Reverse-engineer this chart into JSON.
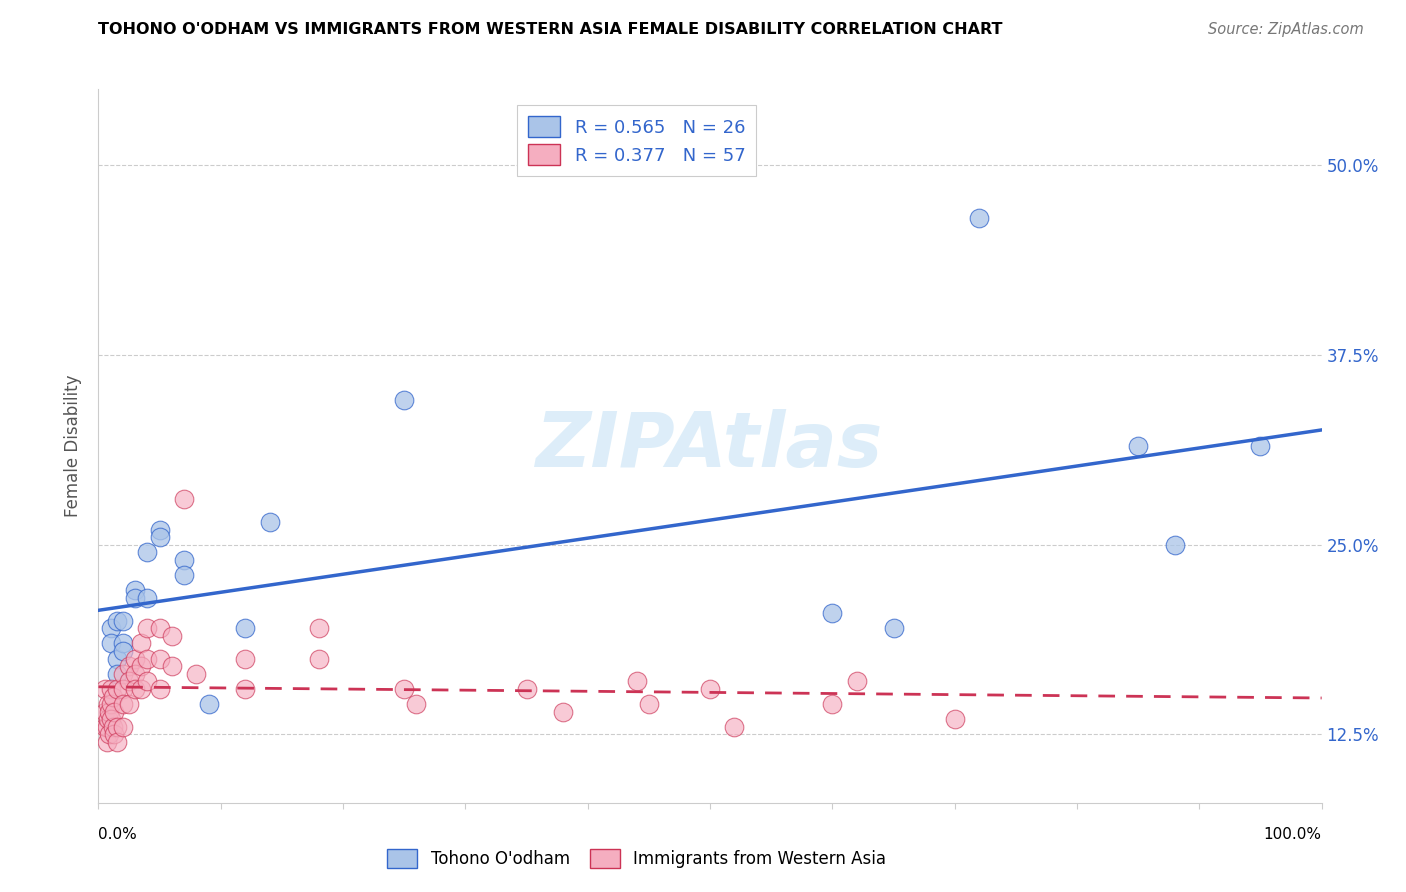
{
  "title": "TOHONO O'ODHAM VS IMMIGRANTS FROM WESTERN ASIA FEMALE DISABILITY CORRELATION CHART",
  "source": "Source: ZipAtlas.com",
  "ylabel": "Female Disability",
  "y_ticks": [
    0.125,
    0.25,
    0.375,
    0.5
  ],
  "y_tick_labels": [
    "12.5%",
    "25.0%",
    "37.5%",
    "50.0%"
  ],
  "blue_R": "0.565",
  "blue_N": "26",
  "pink_R": "0.377",
  "pink_N": "57",
  "blue_color": "#aac4e8",
  "pink_color": "#f5aec0",
  "blue_line_color": "#3366cc",
  "pink_line_color": "#cc3355",
  "blue_scatter": [
    [
      0.01,
      0.195
    ],
    [
      0.01,
      0.185
    ],
    [
      0.015,
      0.2
    ],
    [
      0.015,
      0.175
    ],
    [
      0.015,
      0.165
    ],
    [
      0.02,
      0.185
    ],
    [
      0.02,
      0.18
    ],
    [
      0.02,
      0.2
    ],
    [
      0.03,
      0.22
    ],
    [
      0.03,
      0.215
    ],
    [
      0.04,
      0.215
    ],
    [
      0.04,
      0.245
    ],
    [
      0.05,
      0.26
    ],
    [
      0.05,
      0.255
    ],
    [
      0.07,
      0.24
    ],
    [
      0.07,
      0.23
    ],
    [
      0.09,
      0.145
    ],
    [
      0.12,
      0.195
    ],
    [
      0.14,
      0.265
    ],
    [
      0.25,
      0.345
    ],
    [
      0.6,
      0.205
    ],
    [
      0.65,
      0.195
    ],
    [
      0.72,
      0.465
    ],
    [
      0.85,
      0.315
    ],
    [
      0.88,
      0.25
    ],
    [
      0.95,
      0.315
    ]
  ],
  "pink_scatter": [
    [
      0.005,
      0.13
    ],
    [
      0.005,
      0.14
    ],
    [
      0.005,
      0.155
    ],
    [
      0.007,
      0.12
    ],
    [
      0.007,
      0.13
    ],
    [
      0.008,
      0.145
    ],
    [
      0.008,
      0.135
    ],
    [
      0.009,
      0.125
    ],
    [
      0.009,
      0.14
    ],
    [
      0.01,
      0.155
    ],
    [
      0.01,
      0.145
    ],
    [
      0.01,
      0.135
    ],
    [
      0.012,
      0.15
    ],
    [
      0.012,
      0.13
    ],
    [
      0.013,
      0.14
    ],
    [
      0.013,
      0.125
    ],
    [
      0.015,
      0.155
    ],
    [
      0.015,
      0.13
    ],
    [
      0.015,
      0.12
    ],
    [
      0.02,
      0.165
    ],
    [
      0.02,
      0.155
    ],
    [
      0.02,
      0.145
    ],
    [
      0.02,
      0.13
    ],
    [
      0.025,
      0.17
    ],
    [
      0.025,
      0.16
    ],
    [
      0.025,
      0.145
    ],
    [
      0.03,
      0.175
    ],
    [
      0.03,
      0.165
    ],
    [
      0.03,
      0.155
    ],
    [
      0.035,
      0.185
    ],
    [
      0.035,
      0.17
    ],
    [
      0.035,
      0.155
    ],
    [
      0.04,
      0.195
    ],
    [
      0.04,
      0.175
    ],
    [
      0.04,
      0.16
    ],
    [
      0.05,
      0.195
    ],
    [
      0.05,
      0.175
    ],
    [
      0.05,
      0.155
    ],
    [
      0.06,
      0.19
    ],
    [
      0.06,
      0.17
    ],
    [
      0.07,
      0.28
    ],
    [
      0.08,
      0.165
    ],
    [
      0.12,
      0.155
    ],
    [
      0.12,
      0.175
    ],
    [
      0.18,
      0.195
    ],
    [
      0.18,
      0.175
    ],
    [
      0.25,
      0.155
    ],
    [
      0.26,
      0.145
    ],
    [
      0.35,
      0.155
    ],
    [
      0.38,
      0.14
    ],
    [
      0.44,
      0.16
    ],
    [
      0.45,
      0.145
    ],
    [
      0.5,
      0.155
    ],
    [
      0.52,
      0.13
    ],
    [
      0.6,
      0.145
    ],
    [
      0.62,
      0.16
    ],
    [
      0.7,
      0.135
    ]
  ],
  "background_color": "#ffffff",
  "grid_color": "#cccccc",
  "xlim": [
    0.0,
    1.0
  ],
  "ylim": [
    0.08,
    0.55
  ]
}
